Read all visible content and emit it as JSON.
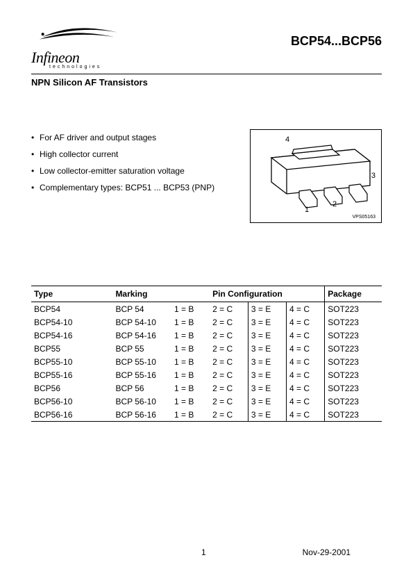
{
  "header": {
    "logo_text": "Infineon",
    "logo_sub": "technologies",
    "part_title": "BCP54...BCP56"
  },
  "subheading": "NPN Silicon AF Transistors",
  "features": [
    "For AF driver and output stages",
    "High collector current",
    "Low collector-emitter saturation voltage",
    "Complementary types: BCP51 ... BCP53 (PNP)"
  ],
  "diagram": {
    "pins": [
      "1",
      "2",
      "3",
      "4"
    ],
    "ref": "VPS05163"
  },
  "table": {
    "headers": {
      "type": "Type",
      "marking": "Marking",
      "pinconfig": "Pin Configuration",
      "package": "Package"
    },
    "rows": [
      {
        "type": "BCP54",
        "marking": "BCP 54",
        "p1": "1 = B",
        "p2": "2 = C",
        "p3": "3 = E",
        "p4": "4 = C",
        "pkg": "SOT223"
      },
      {
        "type": "BCP54-10",
        "marking": "BCP 54-10",
        "p1": "1 = B",
        "p2": "2 = C",
        "p3": "3 = E",
        "p4": "4 = C",
        "pkg": "SOT223"
      },
      {
        "type": "BCP54-16",
        "marking": "BCP 54-16",
        "p1": "1 = B",
        "p2": "2 = C",
        "p3": "3 = E",
        "p4": "4 = C",
        "pkg": "SOT223"
      },
      {
        "type": "BCP55",
        "marking": "BCP 55",
        "p1": "1 = B",
        "p2": "2 = C",
        "p3": "3 = E",
        "p4": "4 = C",
        "pkg": "SOT223"
      },
      {
        "type": "BCP55-10",
        "marking": "BCP 55-10",
        "p1": "1 = B",
        "p2": "2 = C",
        "p3": "3 = E",
        "p4": "4 = C",
        "pkg": "SOT223"
      },
      {
        "type": "BCP55-16",
        "marking": "BCP 55-16",
        "p1": "1 = B",
        "p2": "2 = C",
        "p3": "3 = E",
        "p4": "4 = C",
        "pkg": "SOT223"
      },
      {
        "type": "BCP56",
        "marking": "BCP 56",
        "p1": "1 = B",
        "p2": "2 = C",
        "p3": "3 = E",
        "p4": "4 = C",
        "pkg": "SOT223"
      },
      {
        "type": "BCP56-10",
        "marking": "BCP 56-10",
        "p1": "1 = B",
        "p2": "2 = C",
        "p3": "3 = E",
        "p4": "4 = C",
        "pkg": "SOT223"
      },
      {
        "type": "BCP56-16",
        "marking": "BCP 56-16",
        "p1": "1 = B",
        "p2": "2 = C",
        "p3": "3 = E",
        "p4": "4 = C",
        "pkg": "SOT223"
      }
    ]
  },
  "footer": {
    "page": "1",
    "date": "Nov-29-2001"
  }
}
